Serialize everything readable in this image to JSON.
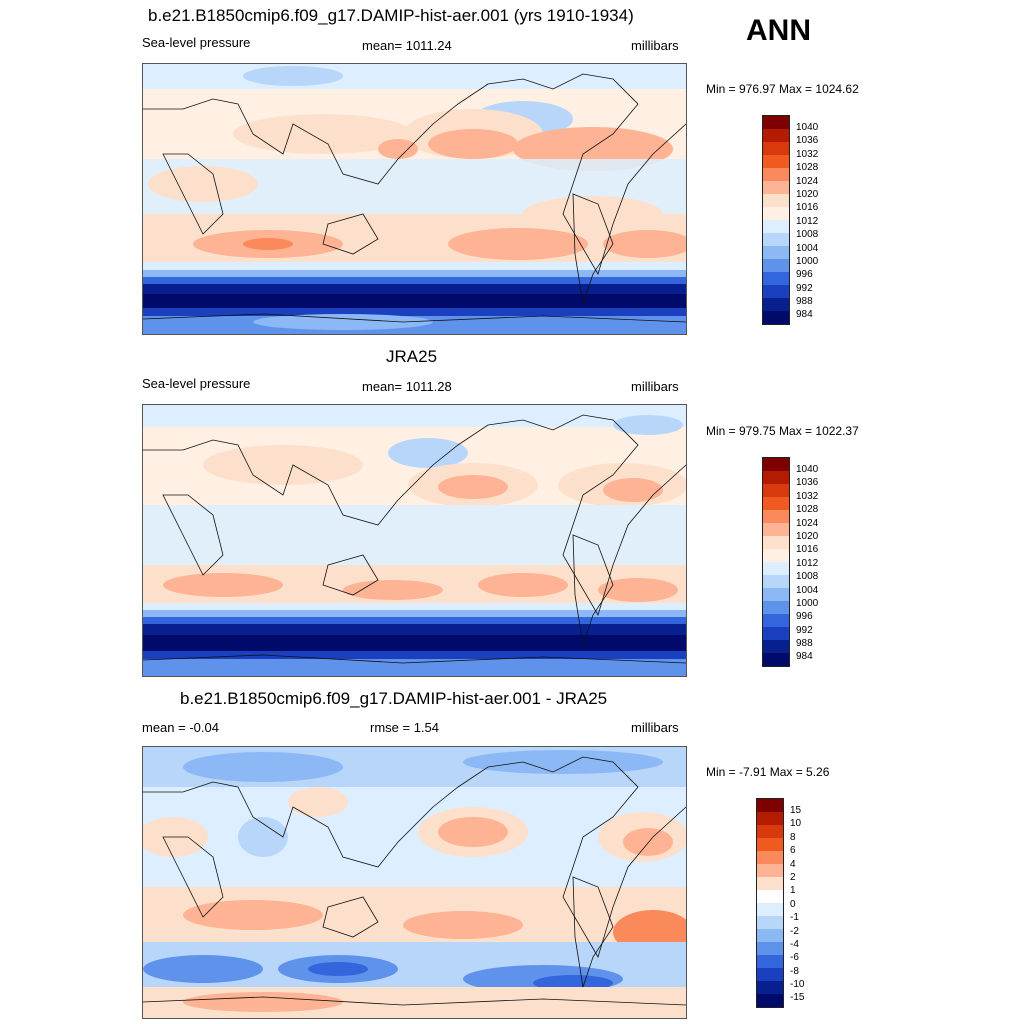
{
  "season": "ANN",
  "panels": [
    {
      "title": "b.e21.B1850cmip6.f09_g17.DAMIP-hist-aer.001 (yrs 1910-1934)",
      "left_label": "Sea-level pressure",
      "center_label": "mean= 1011.24",
      "right_label": "millibars",
      "minmax": "Min = 976.97 Max = 1024.62",
      "colorbar_labels": [
        "1040",
        "1036",
        "1032",
        "1028",
        "1024",
        "1020",
        "1016",
        "1012",
        "1008",
        "1004",
        "1000",
        "996",
        "992",
        "988",
        "984"
      ]
    },
    {
      "title": "JRA25",
      "left_label": "Sea-level pressure",
      "center_label": "mean= 1011.28",
      "right_label": "millibars",
      "minmax": "Min = 979.75 Max = 1022.37",
      "colorbar_labels": [
        "1040",
        "1036",
        "1032",
        "1028",
        "1024",
        "1020",
        "1016",
        "1012",
        "1008",
        "1004",
        "1000",
        "996",
        "992",
        "988",
        "984"
      ]
    },
    {
      "title": "b.e21.B1850cmip6.f09_g17.DAMIP-hist-aer.001 - JRA25",
      "left_label": "mean =  -0.04",
      "center_label": "rmse =   1.54",
      "right_label": "millibars",
      "minmax": "Min =  -7.91 Max =   5.26",
      "colorbar_labels": [
        "15",
        "10",
        "8",
        "6",
        "4",
        "2",
        "1",
        "0",
        "-1",
        "-2",
        "-4",
        "-6",
        "-8",
        "-10",
        "-15"
      ]
    }
  ],
  "colors": {
    "abs_scale": [
      "#7f0000",
      "#b31c00",
      "#d93a0d",
      "#f05a1f",
      "#fa8a5c",
      "#fdb394",
      "#fde0cc",
      "#fff0e3",
      "#dceeff",
      "#b8d6fa",
      "#8cb9f5",
      "#5f93eb",
      "#3366dd",
      "#1a40c0",
      "#08208f",
      "#000a6b"
    ],
    "diff_scale": [
      "#7f0000",
      "#b31c00",
      "#d93a0d",
      "#f05a1f",
      "#fa8a5c",
      "#fdb394",
      "#fde0cc",
      "#ffffff",
      "#dceeff",
      "#b8d6fa",
      "#8cb9f5",
      "#5f93eb",
      "#3366dd",
      "#1a40c0",
      "#08208f",
      "#000a6b"
    ]
  }
}
